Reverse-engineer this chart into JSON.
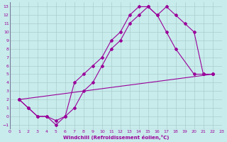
{
  "xlabel": "Windchill (Refroidissement éolien,°C)",
  "xlim": [
    0,
    23
  ],
  "ylim": [
    -1.5,
    13.5
  ],
  "xticks": [
    0,
    1,
    2,
    3,
    4,
    5,
    6,
    7,
    8,
    9,
    10,
    11,
    12,
    13,
    14,
    15,
    16,
    17,
    18,
    19,
    20,
    21,
    22,
    23
  ],
  "yticks": [
    -1,
    0,
    1,
    2,
    3,
    4,
    5,
    6,
    7,
    8,
    9,
    10,
    11,
    12,
    13
  ],
  "bg_color": "#c8ecec",
  "line_color": "#990099",
  "grid_color": "#aacccc",
  "line1_x": [
    1,
    2,
    3,
    4,
    5,
    6,
    7,
    8,
    9,
    10,
    11,
    12,
    13,
    14,
    15,
    16,
    17,
    18,
    19,
    20,
    21,
    22
  ],
  "line1_y": [
    2,
    1,
    0,
    0,
    -1,
    0,
    1,
    3,
    4,
    6,
    8,
    9,
    11,
    12,
    13,
    12,
    13,
    12,
    11,
    10,
    5,
    5
  ],
  "line2_x": [
    1,
    2,
    3,
    4,
    5,
    6,
    7,
    8,
    9,
    10,
    11,
    12,
    13,
    14,
    15,
    16,
    17,
    18,
    20,
    21,
    22
  ],
  "line2_y": [
    2,
    1,
    0,
    0,
    -0.5,
    0,
    4,
    5,
    6,
    7,
    9,
    10,
    12,
    13,
    13,
    12,
    10,
    8,
    5,
    5,
    5
  ],
  "line3_x": [
    1,
    22
  ],
  "line3_y": [
    2,
    5
  ]
}
